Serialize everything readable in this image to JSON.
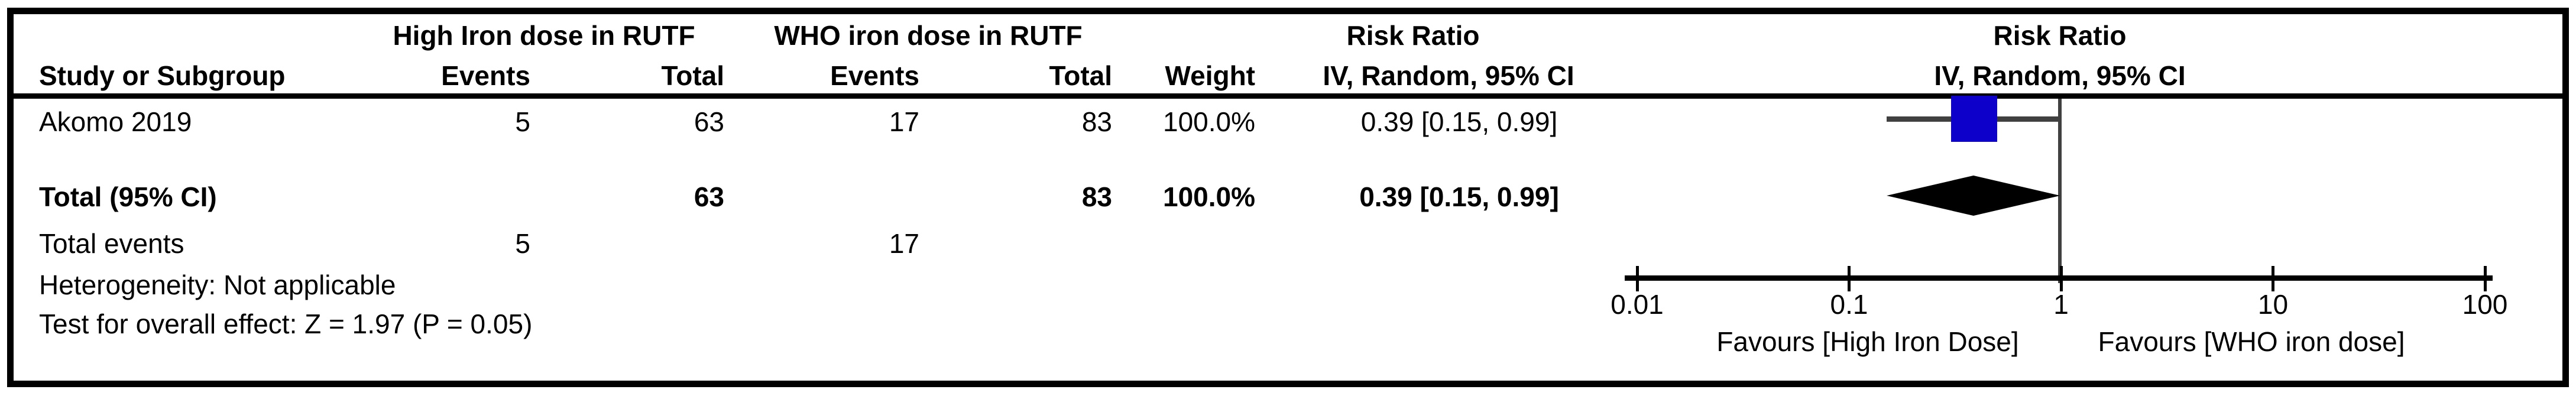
{
  "header": {
    "group_high_iron": "High Iron dose in RUTF",
    "group_who": "WHO iron dose in RUTF",
    "risk_ratio_text_col": "Risk Ratio",
    "risk_ratio_plot_col": "Risk Ratio",
    "method_text_col": "IV, Random, 95% CI",
    "method_plot_col": "IV, Random, 95% CI",
    "study_col": "Study or Subgroup",
    "events_col_high": "Events",
    "total_col_high": "Total",
    "events_col_who": "Events",
    "total_col_who": "Total",
    "weight_col": "Weight"
  },
  "study_row": {
    "name": "Akomo 2019",
    "events_high": "5",
    "total_high": "63",
    "events_who": "17",
    "total_who": "83",
    "weight": "100.0%",
    "ci_text": "0.39 [0.15, 0.99]"
  },
  "total_row": {
    "label": "Total (95% CI)",
    "total_high": "63",
    "total_who": "83",
    "weight": "100.0%",
    "ci_text": "0.39 [0.15, 0.99]"
  },
  "total_events_row": {
    "label": "Total events",
    "events_high": "5",
    "events_who": "17"
  },
  "footnotes": {
    "heterogeneity": "Heterogeneity: Not applicable",
    "overall_effect": "Test for overall effect: Z = 1.97 (P = 0.05)"
  },
  "axis": {
    "tick_labels": [
      "0.01",
      "0.1",
      "1",
      "10",
      "100"
    ],
    "favours_left": "Favours [High Iron Dose]",
    "favours_right": "Favours [WHO iron dose]"
  },
  "colors": {
    "marker_blue": "#0d00cb",
    "line_gray": "#404040",
    "frame_black": "#000000"
  },
  "chart_data": {
    "type": "forest",
    "x_scale": "log10",
    "x_ticks": [
      0.01,
      0.1,
      1,
      10,
      100
    ],
    "x_range": [
      0.01,
      100
    ],
    "effect_measure": "Risk Ratio",
    "method": "IV, Random, 95% CI",
    "studies": [
      {
        "name": "Akomo 2019",
        "rr": 0.39,
        "ci_low": 0.15,
        "ci_high": 0.99,
        "weight_pct": 100.0,
        "events_high_iron": 5,
        "total_high_iron": 63,
        "events_who": 17,
        "total_who": 83
      }
    ],
    "total": {
      "label": "Total (95% CI)",
      "rr": 0.39,
      "ci_low": 0.15,
      "ci_high": 0.99,
      "weight_pct": 100.0,
      "total_high_iron": 63,
      "total_who": 83,
      "total_events_high_iron": 5,
      "total_events_who": 17,
      "heterogeneity": "Not applicable",
      "z": 1.97,
      "p": 0.05
    }
  }
}
